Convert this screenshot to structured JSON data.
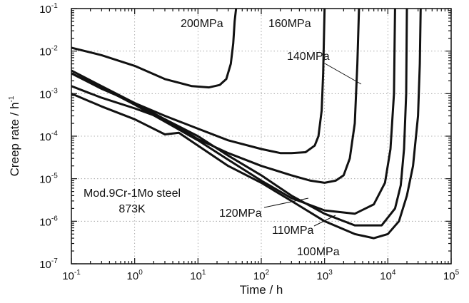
{
  "chart_data": {
    "type": "line",
    "title": "",
    "xlabel": "Time / h",
    "ylabel": "Creep rate / h-1",
    "xscale": "log",
    "yscale": "log",
    "xlim": [
      0.1,
      100000
    ],
    "ylim": [
      1e-07,
      0.1
    ],
    "grid": true,
    "x_ticks": [
      {
        "base": "10",
        "exp": "-1",
        "value": 0.1
      },
      {
        "base": "10",
        "exp": "0",
        "value": 1
      },
      {
        "base": "10",
        "exp": "1",
        "value": 10
      },
      {
        "base": "10",
        "exp": "2",
        "value": 100
      },
      {
        "base": "10",
        "exp": "3",
        "value": 1000
      },
      {
        "base": "10",
        "exp": "4",
        "value": 10000
      },
      {
        "base": "10",
        "exp": "5",
        "value": 100000
      }
    ],
    "y_ticks": [
      {
        "base": "10",
        "exp": "-7",
        "value": 1e-07
      },
      {
        "base": "10",
        "exp": "-6",
        "value": 1e-06
      },
      {
        "base": "10",
        "exp": "-5",
        "value": 1e-05
      },
      {
        "base": "10",
        "exp": "-4",
        "value": 0.0001
      },
      {
        "base": "10",
        "exp": "-3",
        "value": 0.001
      },
      {
        "base": "10",
        "exp": "-2",
        "value": 0.01
      },
      {
        "base": "10",
        "exp": "-1",
        "value": 0.1
      }
    ],
    "annotations": [
      "Mod.9Cr-1Mo steel",
      "873K"
    ],
    "series": [
      {
        "name": "200MPa",
        "x": [
          0.1,
          0.3,
          1,
          3,
          8,
          15,
          22,
          28,
          33,
          36,
          38,
          40
        ],
        "y": [
          0.012,
          0.008,
          0.0045,
          0.0022,
          0.0015,
          0.0014,
          0.0016,
          0.0022,
          0.005,
          0.015,
          0.05,
          0.1
        ]
      },
      {
        "name": "160MPa",
        "x": [
          0.1,
          0.3,
          1,
          3,
          10,
          30,
          100,
          200,
          300,
          500,
          700,
          800,
          900,
          950,
          1000
        ],
        "y": [
          0.003,
          0.0013,
          0.0006,
          0.0003,
          0.00015,
          8e-05,
          5e-05,
          4e-05,
          4e-05,
          4.2e-05,
          6e-05,
          0.0001,
          0.0004,
          0.003,
          0.1
        ]
      },
      {
        "name": "140MPa",
        "x": [
          0.1,
          0.3,
          1,
          3,
          10,
          30,
          100,
          300,
          600,
          1000,
          1500,
          2000,
          2500,
          3000,
          3300,
          3500
        ],
        "y": [
          0.0035,
          0.0015,
          0.0006,
          0.00025,
          8.5e-05,
          4e-05,
          2e-05,
          1.2e-05,
          9e-06,
          8e-06,
          9e-06,
          1.2e-05,
          3e-05,
          0.0002,
          0.005,
          0.1
        ]
      },
      {
        "name": "120MPa",
        "x": [
          0.1,
          0.3,
          1,
          3,
          10,
          30,
          100,
          300,
          1000,
          3000,
          6000,
          9000,
          11000,
          12500,
          13000
        ],
        "y": [
          0.003,
          0.0014,
          0.00055,
          0.00022,
          8e-05,
          2.8e-05,
          9e-06,
          3.5e-06,
          1.8e-06,
          1.5e-06,
          2.5e-06,
          8e-06,
          5e-05,
          0.001,
          0.1
        ]
      },
      {
        "name": "110MPa",
        "x": [
          0.1,
          0.3,
          1,
          3,
          10,
          30,
          100,
          300,
          1000,
          3000,
          8000,
          13000,
          16000,
          18000,
          19500,
          20000
        ],
        "y": [
          0.0015,
          0.0008,
          0.00045,
          0.00025,
          0.0001,
          3.5e-05,
          1.2e-05,
          4e-06,
          1.5e-06,
          8e-07,
          8e-07,
          2e-06,
          7e-06,
          5e-05,
          0.001,
          0.1
        ]
      },
      {
        "name": "100MPa",
        "x": [
          0.1,
          0.3,
          1,
          3,
          5,
          10,
          30,
          100,
          300,
          1000,
          3000,
          6000,
          10000,
          15000,
          20000,
          25000,
          30000,
          32000,
          33000
        ],
        "y": [
          0.001,
          0.0005,
          0.00025,
          0.00011,
          0.00012,
          6e-05,
          2e-05,
          8e-06,
          3e-06,
          1e-06,
          5e-07,
          4e-07,
          5e-07,
          1e-06,
          4e-06,
          2e-05,
          0.0003,
          0.005,
          0.1
        ]
      }
    ]
  }
}
